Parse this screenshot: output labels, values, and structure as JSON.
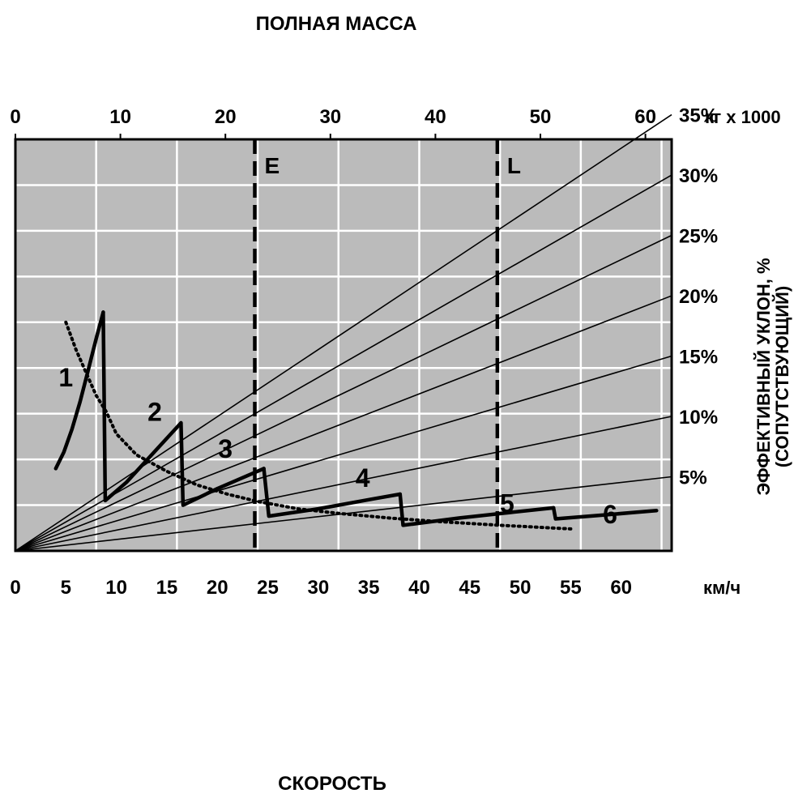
{
  "chart_data": {
    "type": "line",
    "title_top": "ПОЛНАЯ МАССА",
    "title_bottom": "СКОРОСТЬ",
    "colors": {
      "plot_bg": "#bbbbbb",
      "grid": "#ffffff",
      "ink": "#000000"
    },
    "x_axis_bottom": {
      "unit_label": "км/ч",
      "range": [
        0,
        65
      ],
      "ticks": [
        0,
        5,
        10,
        15,
        20,
        25,
        30,
        35,
        40,
        45,
        50,
        55,
        60
      ],
      "tick_labels": [
        "0",
        "5",
        "10",
        "15",
        "20",
        "25",
        "30",
        "35",
        "40",
        "45",
        "50",
        "55",
        "60"
      ]
    },
    "x_axis_top": {
      "unit_label": "кг x 1000",
      "range": [
        0,
        62.5
      ],
      "ticks": [
        0,
        10,
        20,
        30,
        40,
        50,
        60
      ],
      "tick_labels": [
        "0",
        "10",
        "20",
        "30",
        "40",
        "50",
        "60"
      ]
    },
    "y_axis_right": {
      "label_line1": "ЭФФЕКТИВНЫЙ УКЛОН, %",
      "label_line2": "(СОПУТСТВУЮЩИЙ)",
      "range": [
        0,
        45
      ],
      "grade_labels": [
        "5%",
        "10%",
        "15%",
        "20%",
        "25%",
        "30%",
        "35%"
      ]
    },
    "grid": true,
    "grade_lines": [
      {
        "grade": "5%",
        "slope": 0.1247
      },
      {
        "grade": "10%",
        "slope": 0.2262
      },
      {
        "grade": "15%",
        "slope": 0.3277
      },
      {
        "grade": "20%",
        "slope": 0.4292
      },
      {
        "grade": "25%",
        "slope": 0.5308
      },
      {
        "grade": "30%",
        "slope": 0.6323
      },
      {
        "grade": "35%",
        "slope": 0.7338
      }
    ],
    "reference_lines": [
      {
        "label": "E",
        "mass": 22.8
      },
      {
        "label": "L",
        "mass": 45.9
      }
    ],
    "gears": [
      {
        "label": "1",
        "label_pos": [
          5,
          18
        ],
        "points": [
          [
            4,
            9.0
          ],
          [
            4.8,
            10.8
          ],
          [
            5.6,
            13.3
          ],
          [
            6.4,
            16.3
          ],
          [
            7.2,
            19.7
          ],
          [
            8.0,
            23.2
          ],
          [
            8.7,
            26.1
          ]
        ]
      },
      {
        "label": "2",
        "label_pos": [
          13.8,
          14.2
        ],
        "points": [
          [
            8.7,
            26.1
          ],
          [
            8.9,
            5.5
          ],
          [
            11,
            7.5
          ],
          [
            16.4,
            14.0
          ]
        ]
      },
      {
        "label": "3",
        "label_pos": [
          20.8,
          10.2
        ],
        "points": [
          [
            16.4,
            14.0
          ],
          [
            16.6,
            5.0
          ],
          [
            20,
            6.8
          ],
          [
            24.6,
            9.0
          ]
        ]
      },
      {
        "label": "4",
        "label_pos": [
          34.4,
          7.0
        ],
        "points": [
          [
            24.6,
            9.0
          ],
          [
            25.1,
            3.8
          ],
          [
            30,
            4.6
          ],
          [
            35.5,
            5.7
          ],
          [
            38.1,
            6.2
          ]
        ]
      },
      {
        "label": "5",
        "label_pos": [
          48.7,
          4.2
        ],
        "points": [
          [
            38.1,
            6.2
          ],
          [
            38.4,
            2.8
          ],
          [
            44,
            3.6
          ],
          [
            49,
            4.2
          ],
          [
            53.3,
            4.7
          ]
        ]
      },
      {
        "label": "6",
        "label_pos": [
          58.9,
          3.0
        ],
        "points": [
          [
            53.3,
            4.7
          ],
          [
            53.5,
            3.5
          ],
          [
            58,
            3.9
          ],
          [
            63.5,
            4.4
          ]
        ]
      }
    ],
    "retarder_curve": [
      [
        5,
        25
      ],
      [
        6,
        22
      ],
      [
        7,
        19.5
      ],
      [
        8,
        17
      ],
      [
        9,
        15.2
      ],
      [
        10,
        12.8
      ],
      [
        12,
        10.5
      ],
      [
        15,
        8.7
      ],
      [
        18,
        7.2
      ],
      [
        21,
        6.2
      ],
      [
        24,
        5.4
      ],
      [
        28,
        4.6
      ],
      [
        32,
        4.1
      ],
      [
        37,
        3.6
      ],
      [
        42,
        3.2
      ],
      [
        48,
        2.8
      ],
      [
        55,
        2.4
      ]
    ]
  }
}
